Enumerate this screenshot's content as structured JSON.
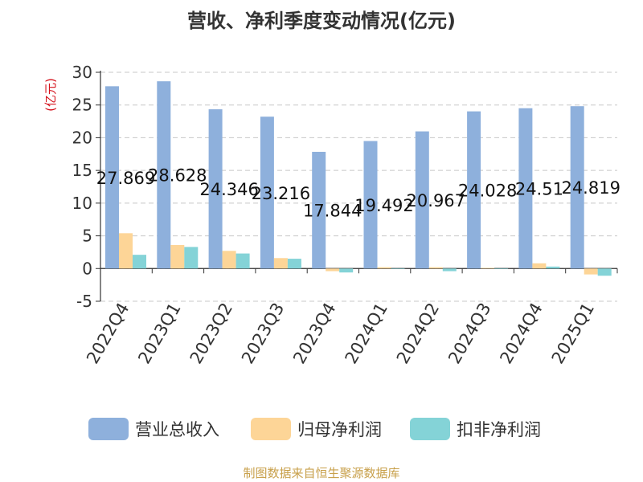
{
  "chart_data": {
    "type": "bar",
    "title": "营收、净利季度变动情况(亿元)",
    "ylabel": "(亿元)",
    "xlabel": "",
    "ylim": [
      -5,
      30
    ],
    "yticks": [
      30,
      25,
      20,
      15,
      10,
      5,
      0,
      -5
    ],
    "grid": true,
    "legend_position": "bottom",
    "categories": [
      "2022Q4",
      "2023Q1",
      "2023Q2",
      "2023Q3",
      "2023Q4",
      "2024Q1",
      "2024Q2",
      "2024Q3",
      "2024Q4",
      "2025Q1"
    ],
    "series": [
      {
        "name": "营业总收入",
        "color": "#8eb0dc",
        "values": [
          27.869,
          28.628,
          24.346,
          23.216,
          17.844,
          19.492,
          20.967,
          24.028,
          24.51,
          24.819
        ],
        "labels": [
          "27.869",
          "28.628",
          "24.346",
          "23.216",
          "17.844",
          "19.492",
          "20.967",
          "24.028",
          "24.51",
          "24.819"
        ]
      },
      {
        "name": "归母净利润",
        "color": "#fdd597",
        "values": [
          5.4,
          3.6,
          2.7,
          1.6,
          -0.4,
          0.2,
          0.2,
          0.1,
          0.8,
          -0.9
        ]
      },
      {
        "name": "扣非净利润",
        "color": "#84d3d7",
        "values": [
          2.1,
          3.3,
          2.3,
          1.5,
          -0.6,
          0.0,
          -0.4,
          0.0,
          0.3,
          -1.1
        ]
      }
    ]
  },
  "source": "制图数据来自恒生聚源数据库"
}
